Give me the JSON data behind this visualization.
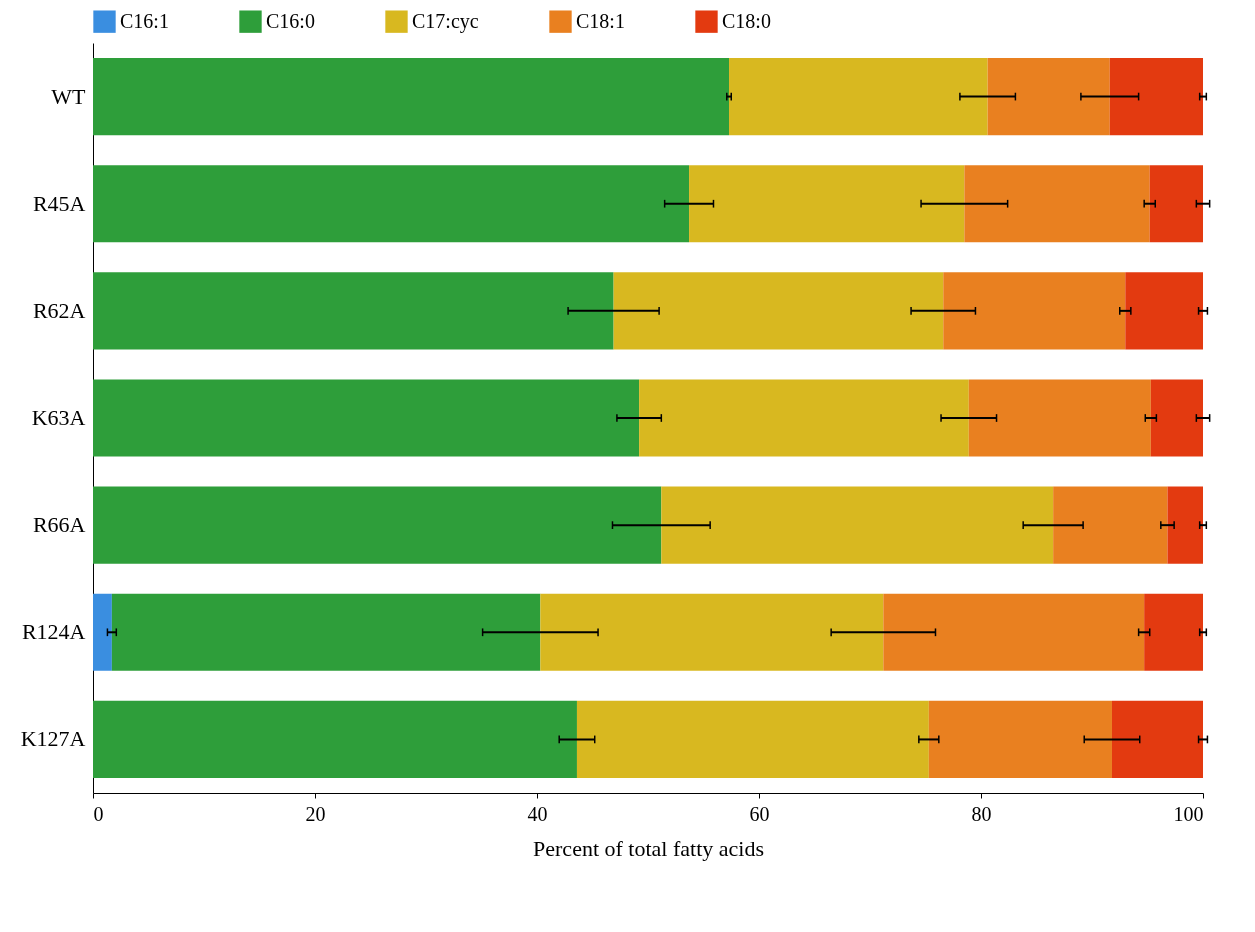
{
  "chart_data": {
    "type": "bar",
    "orientation": "horizontal",
    "stacked": true,
    "xlabel": "Percent of total fatty acids",
    "categories": [
      "WT",
      "R45A",
      "R62A",
      "K63A",
      "R66A",
      "R124A",
      "K127A"
    ],
    "series": [
      {
        "name": "C16:1",
        "color": "#3a8ee0",
        "values": [
          0,
          0,
          0,
          0,
          0,
          1.7,
          0
        ],
        "errors": [
          null,
          null,
          null,
          null,
          null,
          0.4,
          null
        ]
      },
      {
        "name": "C16:0",
        "color": "#2e9e3a",
        "values": [
          57.3,
          53.7,
          46.9,
          49.2,
          51.2,
          38.6,
          43.6
        ],
        "errors": [
          0.2,
          2.2,
          4.1,
          2.0,
          4.4,
          5.2,
          1.6
        ]
      },
      {
        "name": "C17:cyc",
        "color": "#d8b820",
        "values": [
          23.3,
          24.8,
          29.7,
          29.7,
          35.3,
          30.9,
          31.7
        ],
        "errors": [
          2.5,
          3.9,
          2.9,
          2.5,
          2.7,
          4.7,
          0.9
        ]
      },
      {
        "name": "C18:1",
        "color": "#e98020",
        "values": [
          11.0,
          16.7,
          16.4,
          16.4,
          10.3,
          23.5,
          16.5
        ],
        "errors": [
          2.6,
          0.5,
          0.5,
          0.5,
          0.6,
          0.5,
          2.5
        ]
      },
      {
        "name": "C18:0",
        "color": "#e33a10",
        "values": [
          8.4,
          4.8,
          7.0,
          4.7,
          3.2,
          5.3,
          8.2
        ],
        "errors": [
          0.3,
          0.6,
          0.4,
          0.6,
          0.3,
          0.3,
          0.4
        ]
      }
    ],
    "xlim": [
      0,
      100
    ],
    "xticks": [
      0,
      20,
      40,
      60,
      80,
      100
    ],
    "grid": false,
    "legend": "top"
  }
}
